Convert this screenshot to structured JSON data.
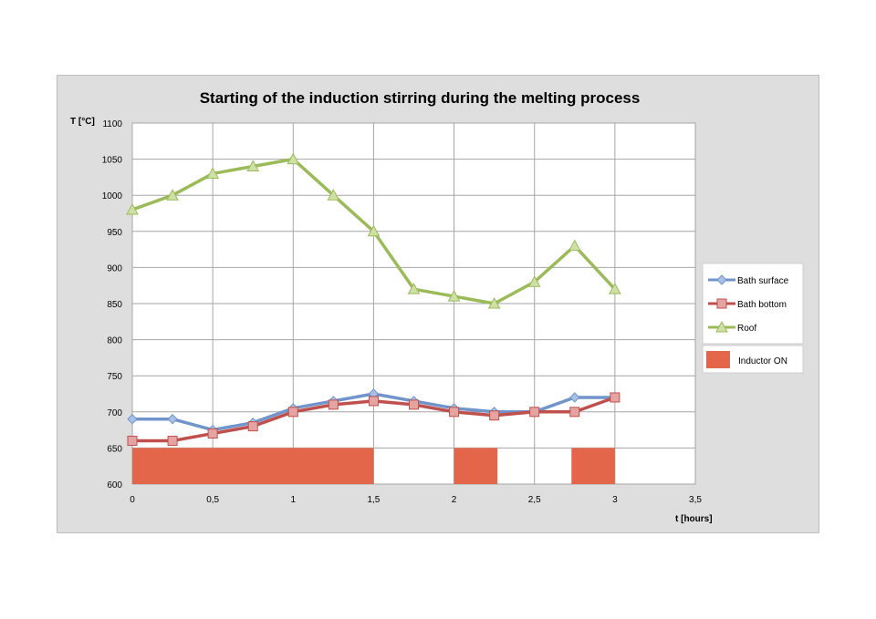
{
  "chart_data": {
    "type": "line",
    "title": "Starting of the induction stirring during the melting process",
    "xlabel": "t [hours]",
    "ylabel": "T [°C]",
    "xlim": [
      0,
      3.5
    ],
    "ylim": [
      600,
      1100
    ],
    "x_ticks": [
      "0",
      "0,5",
      "1",
      "1,5",
      "2",
      "2,5",
      "3",
      "3,5"
    ],
    "x_tick_values": [
      0,
      0.5,
      1,
      1.5,
      2,
      2.5,
      3,
      3.5
    ],
    "y_ticks": [
      "600",
      "650",
      "700",
      "750",
      "800",
      "850",
      "900",
      "950",
      "1000",
      "1050",
      "1100"
    ],
    "y_tick_values": [
      600,
      650,
      700,
      750,
      800,
      850,
      900,
      950,
      1000,
      1050,
      1100
    ],
    "grid": true,
    "legend_position": "right",
    "x": [
      0,
      0.25,
      0.5,
      0.75,
      1,
      1.25,
      1.5,
      1.75,
      2,
      2.25,
      2.5,
      2.75,
      3
    ],
    "series": [
      {
        "name": "Bath surface",
        "color": "#7094cb",
        "marker": "diamond",
        "values": [
          690,
          690,
          675,
          685,
          705,
          715,
          725,
          715,
          705,
          700,
          700,
          720,
          720
        ]
      },
      {
        "name": "Bath bottom",
        "color": "#c0504d",
        "marker": "square",
        "values": [
          660,
          660,
          670,
          680,
          700,
          710,
          715,
          710,
          700,
          695,
          700,
          700,
          720
        ]
      },
      {
        "name": "Roof",
        "color": "#9bbb59",
        "marker": "triangle",
        "values": [
          980,
          1000,
          1030,
          1040,
          1050,
          1000,
          950,
          870,
          860,
          850,
          880,
          930,
          870
        ]
      }
    ],
    "inductor": {
      "name": "Inductor ON",
      "color": "#e4664a",
      "level": 650,
      "intervals": [
        [
          0,
          1.5
        ],
        [
          2,
          2.27
        ],
        [
          2.73,
          3
        ]
      ]
    }
  }
}
